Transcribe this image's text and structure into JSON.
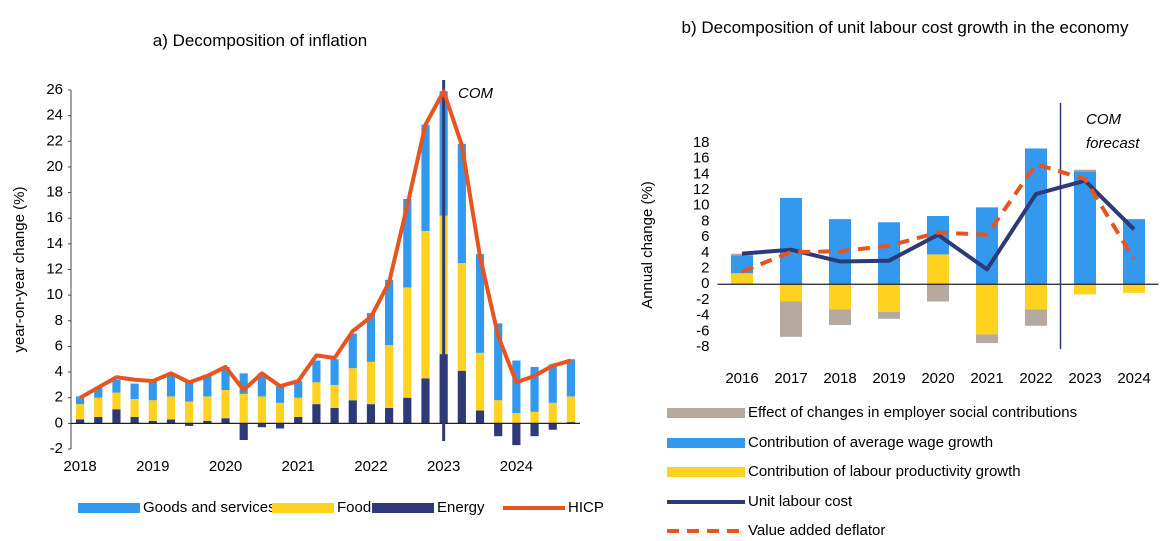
{
  "chart_data": [
    {
      "type": "bar",
      "title": "a) Decomposition of inflation",
      "y_label": "year-on-year change (%)",
      "categories": [
        "2018",
        null,
        null,
        null,
        "2019",
        null,
        null,
        null,
        "2020",
        null,
        null,
        null,
        "2021",
        null,
        null,
        null,
        "2022",
        null,
        null,
        null,
        "2023",
        null,
        null,
        null,
        "2024",
        null,
        null,
        null
      ],
      "series": [
        {
          "name": "Goods and services",
          "mark": "bar",
          "color": "#3399ee",
          "values": [
            0.6,
            0.8,
            1.0,
            1.2,
            1.6,
            1.7,
            1.6,
            1.7,
            1.8,
            1.6,
            1.8,
            1.4,
            1.3,
            1.7,
            2.0,
            2.7,
            3.8,
            5.1,
            6.9,
            8.3,
            9.7,
            9.3,
            7.7,
            6.0,
            4.1,
            3.5,
            3.0,
            2.9
          ]
        },
        {
          "name": "Food",
          "mark": "bar",
          "color": "#ffd21f",
          "values": [
            1.2,
            1.5,
            1.3,
            1.4,
            1.6,
            1.8,
            1.7,
            1.9,
            2.2,
            2.3,
            2.1,
            1.6,
            1.5,
            1.7,
            1.8,
            2.5,
            3.3,
            4.9,
            8.6,
            11.5,
            10.8,
            8.4,
            4.5,
            1.8,
            0.8,
            0.9,
            1.6,
            2.0
          ]
        },
        {
          "name": "Energy",
          "mark": "bar",
          "color": "#2e3a78",
          "values": [
            0.3,
            0.5,
            1.1,
            0.5,
            0.2,
            0.3,
            -0.2,
            0.2,
            0.4,
            -1.3,
            -0.3,
            -0.4,
            0.5,
            1.5,
            1.2,
            1.8,
            1.5,
            1.2,
            2.0,
            3.5,
            5.4,
            4.1,
            1.0,
            -1.0,
            -1.7,
            -1.0,
            -0.5,
            0.1
          ]
        },
        {
          "name": "HICP",
          "mark": "line",
          "color": "#e8541f",
          "values": [
            2.0,
            2.8,
            3.6,
            3.4,
            3.3,
            3.9,
            3.2,
            3.7,
            4.4,
            2.6,
            3.9,
            2.9,
            3.3,
            5.3,
            5.1,
            7.2,
            8.3,
            11.0,
            17.0,
            23.3,
            25.9,
            21.7,
            13.0,
            6.8,
            3.2,
            3.7,
            4.5,
            4.9
          ]
        }
      ],
      "ylim": [
        -2,
        26
      ],
      "yticks": [
        -2,
        0,
        2,
        4,
        6,
        8,
        10,
        12,
        14,
        16,
        18,
        20,
        22,
        24,
        26
      ],
      "grid": false,
      "y_axis_line": true,
      "legend": "bottom-row",
      "annotation": {
        "text": "COM",
        "at": "2023",
        "align": "center"
      }
    },
    {
      "type": "bar",
      "title": "b) Decomposition of unit labour cost growth in the economy",
      "y_label": "Annual change (%)",
      "categories": [
        "2016",
        "2017",
        "2018",
        "2019",
        "2020",
        "2021",
        "2022",
        "2023",
        "2024"
      ],
      "series": [
        {
          "name": "Effect of changes in employer social contributions",
          "mark": "bar",
          "color": "#b6aaa0",
          "values": [
            0.2,
            -4.5,
            -2.0,
            -0.9,
            -2.2,
            -1.1,
            -2.1,
            0.2,
            0
          ]
        },
        {
          "name": "Contribution of average wage growth",
          "mark": "bar",
          "color": "#3399ee",
          "values": [
            2.3,
            11.0,
            8.3,
            7.9,
            4.9,
            9.8,
            17.3,
            14.4,
            8.3
          ]
        },
        {
          "name": "Contribution of labour productivity growth",
          "mark": "bar",
          "color": "#ffd21f",
          "values": [
            1.4,
            -2.2,
            -3.2,
            -3.5,
            3.8,
            -6.4,
            -3.2,
            -1.3,
            -1.1
          ]
        },
        {
          "name": "Unit labour cost",
          "mark": "line",
          "color": "#2e3a78",
          "values": [
            3.9,
            4.4,
            2.9,
            3.0,
            6.3,
            1.9,
            11.5,
            13.2,
            7.0
          ]
        },
        {
          "name": "Value added deflator",
          "mark": "line",
          "dashed": true,
          "color": "#e8541f",
          "values": [
            1.6,
            4.1,
            4.2,
            4.9,
            6.6,
            6.3,
            15.3,
            13.4,
            3.2
          ]
        }
      ],
      "ylim": [
        -8,
        18
      ],
      "yticks": [
        -8,
        -6,
        -4,
        -2,
        0,
        2,
        4,
        6,
        8,
        10,
        12,
        14,
        16,
        18
      ],
      "grid": false,
      "y_axis_line": false,
      "legend": "bottom-column",
      "annotation": {
        "text": "COM forecast",
        "at": "2023",
        "align": "start"
      }
    }
  ]
}
